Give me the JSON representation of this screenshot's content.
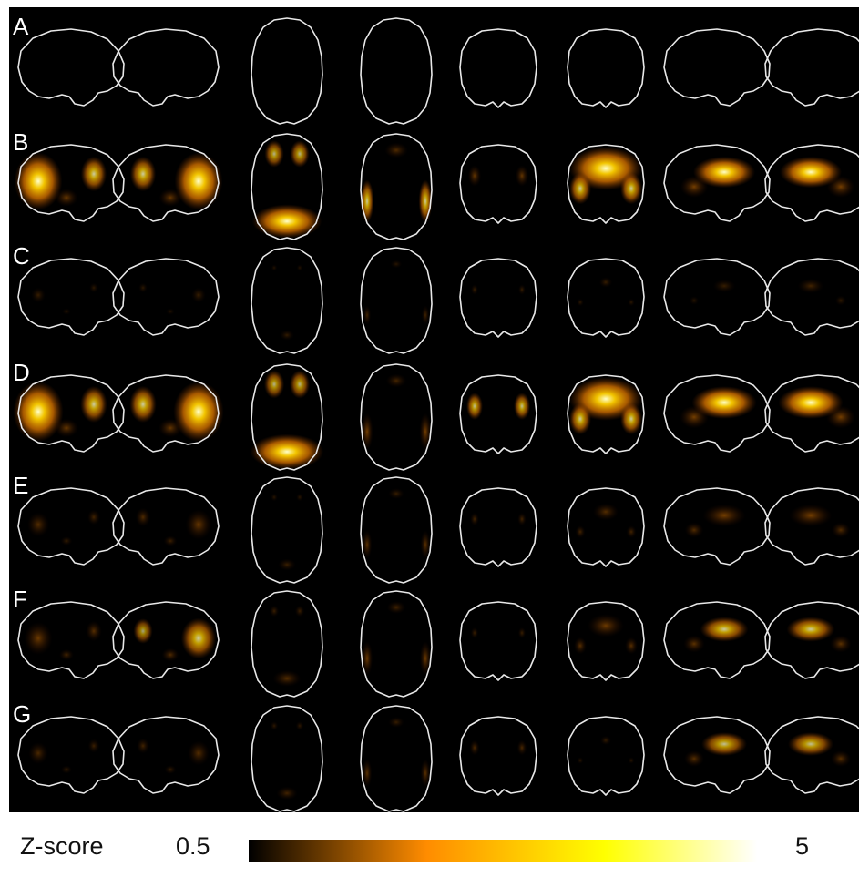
{
  "rows": [
    {
      "label": "A",
      "activations": [
        0,
        0,
        0,
        0,
        0,
        0,
        0,
        0
      ]
    },
    {
      "label": "B",
      "activations": [
        0.85,
        0.85,
        0.85,
        0.55,
        0.35,
        0.9,
        0.8,
        0.8
      ]
    },
    {
      "label": "C",
      "activations": [
        0.08,
        0.08,
        0.05,
        0.15,
        0.08,
        0.08,
        0.08,
        0.15
      ]
    },
    {
      "label": "D",
      "activations": [
        0.9,
        0.9,
        0.9,
        0.45,
        0.5,
        0.9,
        0.85,
        0.85
      ]
    },
    {
      "label": "E",
      "activations": [
        0.25,
        0.35,
        0.1,
        0.3,
        0.15,
        0.25,
        0.45,
        0.45
      ]
    },
    {
      "label": "F",
      "activations": [
        0.4,
        0.55,
        0.25,
        0.4,
        0.1,
        0.4,
        0.55,
        0.55
      ]
    },
    {
      "label": "G",
      "activations": [
        0.2,
        0.25,
        0.15,
        0.3,
        0.2,
        0.05,
        0.5,
        0.5
      ]
    }
  ],
  "colorbar": {
    "title": "Z-score",
    "min_label": "0.5",
    "max_label": "5",
    "colors": [
      "#000000",
      "#ff8c00",
      "#ffff00",
      "#ffffff"
    ]
  }
}
